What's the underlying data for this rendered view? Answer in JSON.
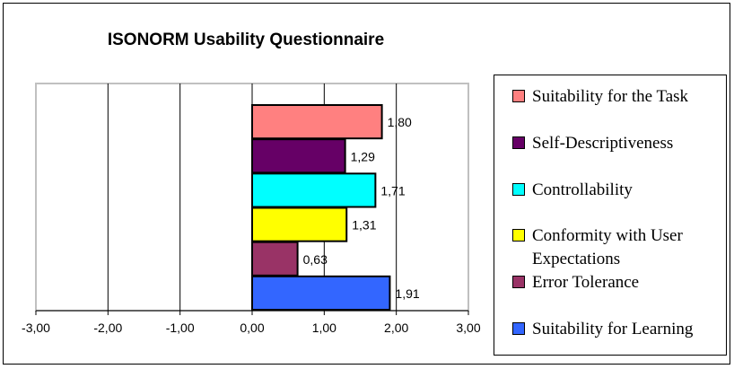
{
  "chart_data": {
    "type": "bar",
    "orientation": "horizontal",
    "title": "ISONORM Usability Questionnaire",
    "xlabel": "",
    "ylabel": "",
    "xlim": [
      -3,
      3
    ],
    "x_ticks": [
      "-3,00",
      "-2,00",
      "-1,00",
      "0,00",
      "1,00",
      "2,00",
      "3,00"
    ],
    "x_tick_values": [
      -3,
      -2,
      -1,
      0,
      1,
      2,
      3
    ],
    "grid": "vertical major gridlines",
    "legend_position": "right",
    "series": [
      {
        "name": "Suitability for the Task",
        "value": 1.8,
        "label": "1,80",
        "color": "#ff8080"
      },
      {
        "name": "Self-Descriptiveness",
        "value": 1.29,
        "label": "1,29",
        "color": "#660066"
      },
      {
        "name": "Controllability",
        "value": 1.71,
        "label": "1,71",
        "color": "#00ffff"
      },
      {
        "name": "Conformity with User Expectations",
        "value": 1.31,
        "label": "1,31",
        "color": "#ffff00"
      },
      {
        "name": "Error Tolerance",
        "value": 0.63,
        "label": "0,63",
        "color": "#993366"
      },
      {
        "name": "Suitability for Learning",
        "value": 1.91,
        "label": "1,91",
        "color": "#3366ff"
      }
    ]
  }
}
